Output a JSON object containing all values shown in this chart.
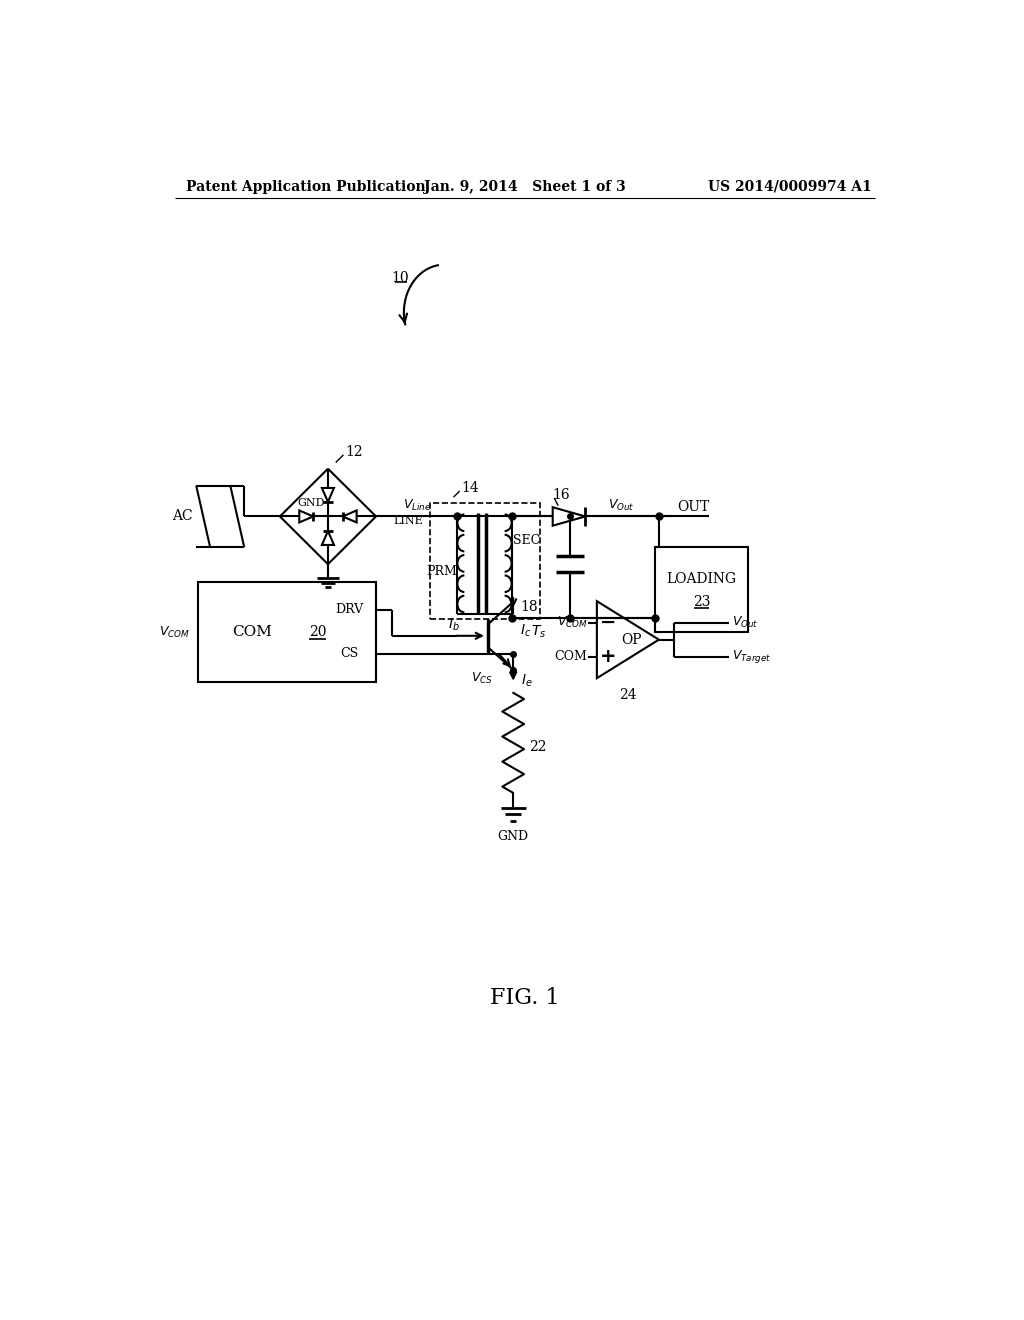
{
  "bg_color": "#ffffff",
  "line_color": "#000000",
  "header_left": "Patent Application Publication",
  "header_center": "Jan. 9, 2014   Sheet 1 of 3",
  "header_right": "US 2014/0009974 A1",
  "footer_label": "FIG. 1",
  "ref_10": "10",
  "ref_12": "12",
  "ref_14": "14",
  "ref_16": "16",
  "ref_18": "18",
  "ref_20": "20",
  "ref_22": "22",
  "ref_23": "23",
  "ref_24": "24"
}
